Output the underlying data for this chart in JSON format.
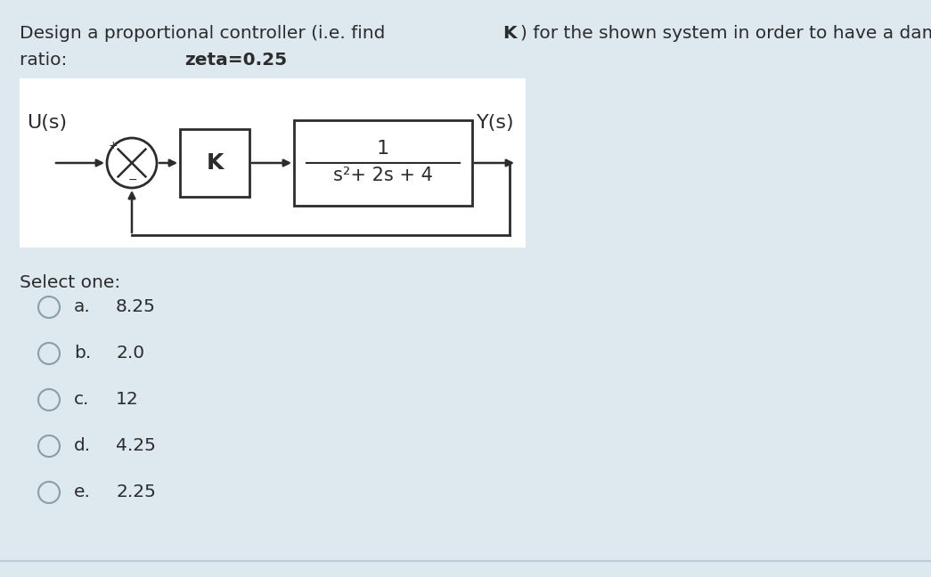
{
  "bg_color": "#dde8ef",
  "diagram_bg": "#ffffff",
  "text_color": "#2c2c2c",
  "title_pre": "Design a proportional controller (i.e. find ",
  "title_bold_K": "K",
  "title_post": ") for the shown system in order to have a damping",
  "line2_pre": "ratio: ",
  "line2_bold": "zeta=0.25",
  "Us_label": "U(s)",
  "Ys_label": "Y(s)",
  "K_label": "K",
  "tf_num": "1",
  "tf_den": "s²+ 2s + 4",
  "select_text": "Select one:",
  "options": [
    {
      "label": "a.",
      "value": "8.25"
    },
    {
      "label": "b.",
      "value": "2.0"
    },
    {
      "label": "c.",
      "value": "12"
    },
    {
      "label": "d.",
      "value": "4.25"
    },
    {
      "label": "e.",
      "value": "2.25"
    }
  ],
  "font_size": 14.5,
  "diag_font_size": 15,
  "select_font_size": 14.5,
  "option_font_size": 14.5
}
